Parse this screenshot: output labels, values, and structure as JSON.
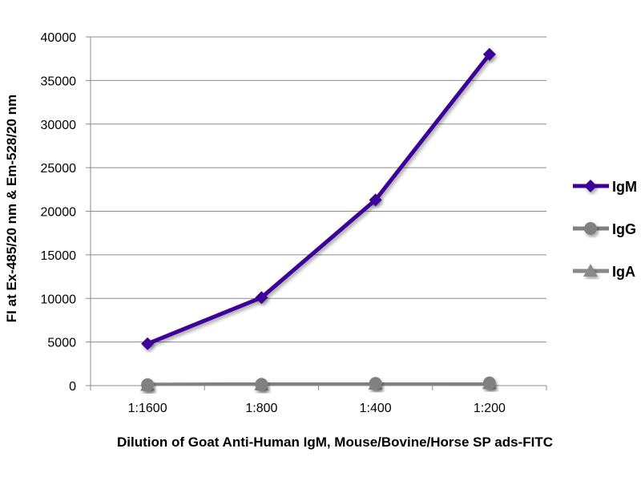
{
  "chart_data": {
    "type": "line",
    "title": "",
    "xlabel": "Dilution of Goat Anti-Human IgM, Mouse/Bovine/Horse SP ads-FITC",
    "ylabel": "FI at Ex-485/20 nm & Em-528/20 nm",
    "categories": [
      "1:1600",
      "1:800",
      "1:400",
      "1:200"
    ],
    "ylim": [
      0,
      40000
    ],
    "yticks": [
      0,
      5000,
      10000,
      15000,
      20000,
      25000,
      30000,
      35000,
      40000
    ],
    "grid": true,
    "legend_position": "right",
    "series": [
      {
        "name": "IgM",
        "marker": "diamond",
        "color": "#3d0099",
        "values": [
          4800,
          10100,
          21300,
          38000
        ]
      },
      {
        "name": "IgG",
        "marker": "circle",
        "color": "#808080",
        "values": [
          100,
          150,
          250,
          300
        ]
      },
      {
        "name": "IgA",
        "marker": "triangle",
        "color": "#8a8a8a",
        "values": [
          50,
          100,
          200,
          250
        ]
      }
    ]
  }
}
